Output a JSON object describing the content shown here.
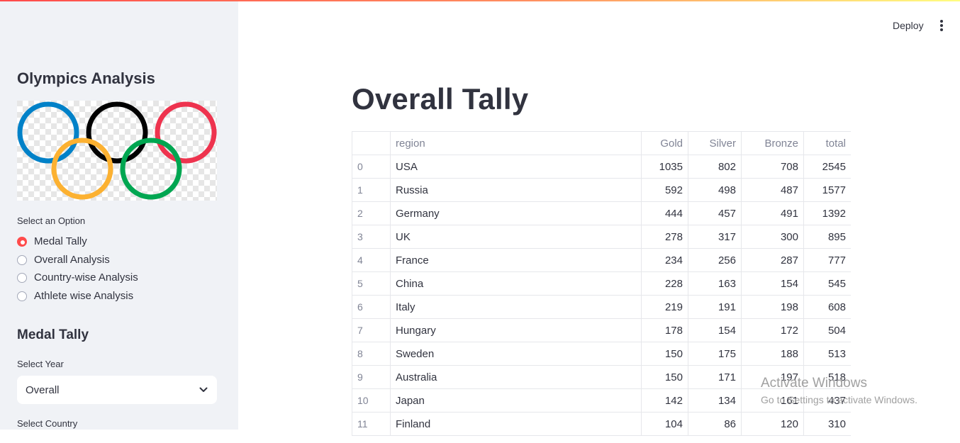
{
  "sidebar": {
    "title": "Olympics Analysis",
    "option_label": "Select an Option",
    "options": [
      {
        "label": "Medal Tally",
        "selected": true
      },
      {
        "label": "Overall Analysis",
        "selected": false
      },
      {
        "label": "Country-wise Analysis",
        "selected": false
      },
      {
        "label": "Athlete wise Analysis",
        "selected": false
      }
    ],
    "section_title": "Medal Tally",
    "year_label": "Select Year",
    "year_value": "Overall",
    "country_label": "Select Country"
  },
  "header": {
    "deploy_label": "Deploy",
    "menu_icon": "more-vertical-icon"
  },
  "colors": {
    "accent": "#ff4b4b",
    "sidebar_bg": "#f0f2f6",
    "ring_blue": "#0081c8",
    "ring_black": "#000000",
    "ring_red": "#ee334e",
    "ring_yellow": "#fcb131",
    "ring_green": "#00a651"
  },
  "main": {
    "title": "Overall Tally",
    "table": {
      "columns": [
        "",
        "region",
        "Gold",
        "Silver",
        "Bronze",
        "total"
      ],
      "rows": [
        [
          "0",
          "USA",
          "1035",
          "802",
          "708",
          "2545"
        ],
        [
          "1",
          "Russia",
          "592",
          "498",
          "487",
          "1577"
        ],
        [
          "2",
          "Germany",
          "444",
          "457",
          "491",
          "1392"
        ],
        [
          "3",
          "UK",
          "278",
          "317",
          "300",
          "895"
        ],
        [
          "4",
          "France",
          "234",
          "256",
          "287",
          "777"
        ],
        [
          "5",
          "China",
          "228",
          "163",
          "154",
          "545"
        ],
        [
          "6",
          "Italy",
          "219",
          "191",
          "198",
          "608"
        ],
        [
          "7",
          "Hungary",
          "178",
          "154",
          "172",
          "504"
        ],
        [
          "8",
          "Sweden",
          "150",
          "175",
          "188",
          "513"
        ],
        [
          "9",
          "Australia",
          "150",
          "171",
          "197",
          "518"
        ],
        [
          "10",
          "Japan",
          "142",
          "134",
          "161",
          "437"
        ],
        [
          "11",
          "Finland",
          "104",
          "86",
          "120",
          "310"
        ]
      ]
    }
  },
  "watermark": {
    "line1": "Activate Windows",
    "line2": "Go to Settings to activate Windows."
  }
}
